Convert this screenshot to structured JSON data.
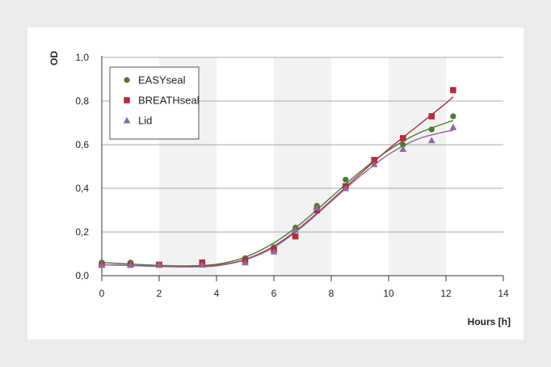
{
  "chart_data": {
    "type": "scatter",
    "ylabel": "OD",
    "xlabel": "Hours [h]",
    "xlim": [
      0,
      14
    ],
    "ylim": [
      0,
      1.0
    ],
    "x_ticks": [
      0,
      2,
      4,
      6,
      8,
      10,
      12,
      14
    ],
    "x_tick_labels": [
      "0",
      "2",
      "4",
      "6",
      "8",
      "10",
      "12",
      "14"
    ],
    "y_ticks": [
      0,
      0.2,
      0.4,
      0.6,
      0.8,
      1.0
    ],
    "y_tick_labels": [
      "0,0",
      "0,2",
      "0,4",
      "0,6",
      "0,8",
      "1,0"
    ],
    "shaded_x_bands": [
      [
        2,
        4
      ],
      [
        6,
        8
      ],
      [
        10,
        12
      ]
    ],
    "grid": "horizontal",
    "legend_position": "top-left",
    "series": [
      {
        "name": "EASYseal",
        "marker": "circle",
        "color": "#4a7a34",
        "x": [
          0,
          1,
          2,
          3.5,
          5,
          6,
          6.75,
          7.5,
          8.5,
          9.5,
          10.5,
          11.5,
          12.25
        ],
        "y": [
          0.06,
          0.06,
          0.05,
          0.05,
          0.08,
          0.13,
          0.22,
          0.32,
          0.44,
          0.52,
          0.6,
          0.67,
          0.73
        ],
        "fit": [
          [
            0,
            0.06
          ],
          [
            1,
            0.053
          ],
          [
            2,
            0.047
          ],
          [
            3,
            0.045
          ],
          [
            4,
            0.052
          ],
          [
            5,
            0.085
          ],
          [
            6,
            0.15
          ],
          [
            7,
            0.245
          ],
          [
            8,
            0.36
          ],
          [
            9,
            0.475
          ],
          [
            10,
            0.575
          ],
          [
            11,
            0.65
          ],
          [
            12,
            0.7
          ],
          [
            12.25,
            0.71
          ]
        ]
      },
      {
        "name": "BREATHseal",
        "marker": "square",
        "color": "#b02d3e",
        "x": [
          0,
          1,
          2,
          3.5,
          5,
          6,
          6.75,
          7.5,
          8.5,
          9.5,
          10.5,
          11.5,
          12.25
        ],
        "y": [
          0.05,
          0.05,
          0.05,
          0.06,
          0.07,
          0.12,
          0.18,
          0.3,
          0.41,
          0.53,
          0.63,
          0.73,
          0.85
        ],
        "fit": [
          [
            0,
            0.05
          ],
          [
            1,
            0.047
          ],
          [
            2,
            0.043
          ],
          [
            3,
            0.042
          ],
          [
            4,
            0.047
          ],
          [
            5,
            0.075
          ],
          [
            6,
            0.135
          ],
          [
            7,
            0.23
          ],
          [
            8,
            0.345
          ],
          [
            9,
            0.465
          ],
          [
            10,
            0.58
          ],
          [
            11,
            0.685
          ],
          [
            12,
            0.79
          ],
          [
            12.25,
            0.82
          ]
        ]
      },
      {
        "name": "Lid",
        "marker": "triangle",
        "color": "#8c6a9e",
        "x": [
          0,
          1,
          2,
          3.5,
          5,
          6,
          6.75,
          7.5,
          8.5,
          9.5,
          10.5,
          11.5,
          12.25
        ],
        "y": [
          0.05,
          0.05,
          0.05,
          0.05,
          0.06,
          0.11,
          0.21,
          0.31,
          0.4,
          0.51,
          0.58,
          0.62,
          0.68
        ],
        "fit": [
          [
            0,
            0.05
          ],
          [
            1,
            0.046
          ],
          [
            2,
            0.042
          ],
          [
            3,
            0.04
          ],
          [
            4,
            0.045
          ],
          [
            5,
            0.072
          ],
          [
            6,
            0.13
          ],
          [
            7,
            0.225
          ],
          [
            8,
            0.34
          ],
          [
            9,
            0.455
          ],
          [
            10,
            0.555
          ],
          [
            11,
            0.625
          ],
          [
            12,
            0.66
          ],
          [
            12.25,
            0.665
          ]
        ]
      }
    ]
  }
}
